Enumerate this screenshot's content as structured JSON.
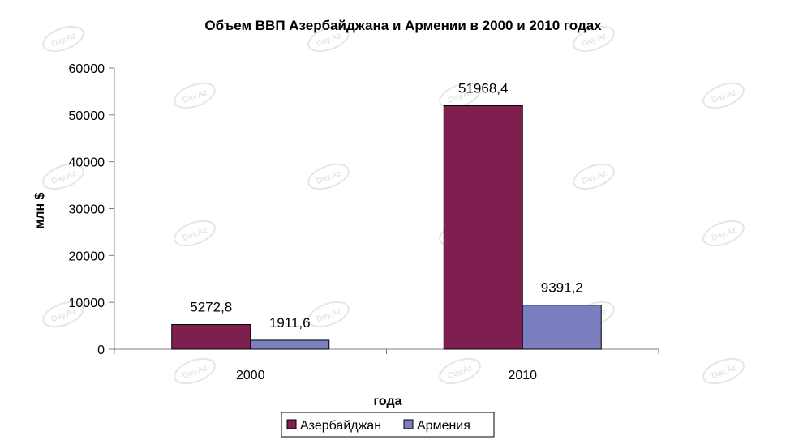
{
  "chart_data": {
    "type": "bar",
    "title": "Объем ВВП Азербайджана и Армении в 2000 и 2010 годах",
    "xlabel": "года",
    "ylabel": "млн $",
    "categories": [
      "2000",
      "2010"
    ],
    "series": [
      {
        "name": "Азербайджан",
        "values": [
          5272.8,
          51968.4
        ],
        "labels": [
          "5272,8",
          "51968,4"
        ],
        "color": "#7f1f4f"
      },
      {
        "name": "Армения",
        "values": [
          1911.6,
          9391.2
        ],
        "labels": [
          "1911,6",
          "9391,2"
        ],
        "color": "#7b7fbf"
      }
    ],
    "ylim": [
      0,
      60000
    ],
    "yticks": [
      0,
      10000,
      20000,
      30000,
      40000,
      50000,
      60000
    ],
    "grid": false,
    "legend_position": "bottom",
    "watermark": "Day.Az"
  }
}
